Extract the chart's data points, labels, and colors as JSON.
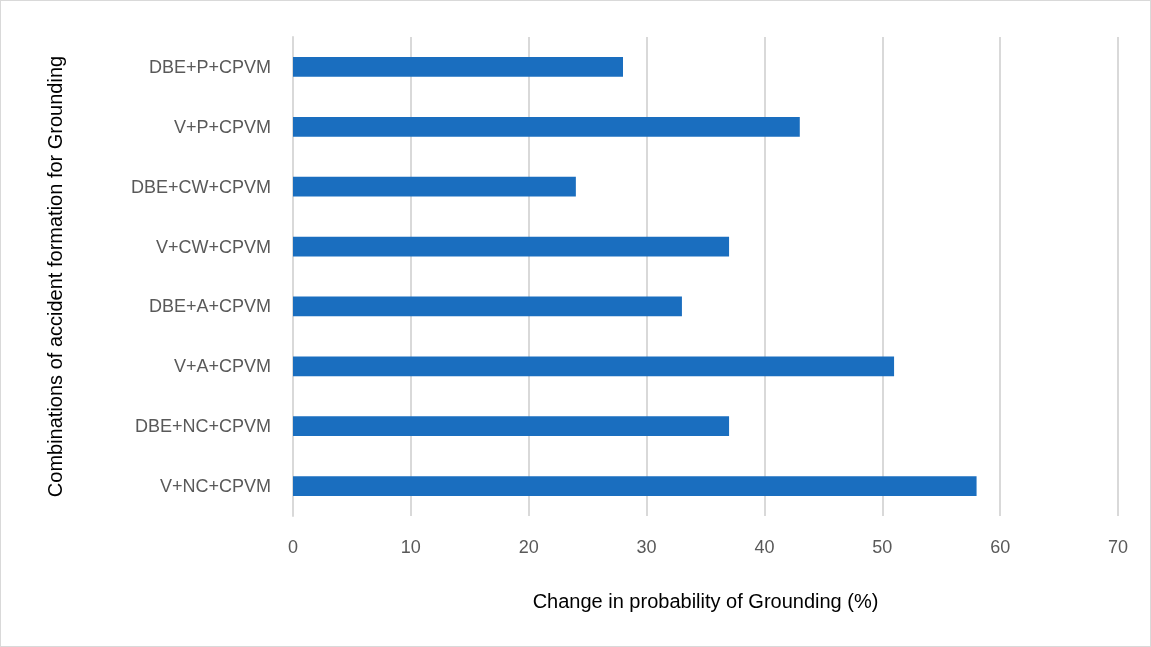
{
  "chart_data": {
    "type": "bar",
    "orientation": "horizontal",
    "xlabel": "Change in probability of Grounding (%)",
    "ylabel": "Combinations of accident formation for Grounding",
    "categories": [
      "DBE+P+CPVM",
      "V+P+CPVM",
      "DBE+CW+CPVM",
      "V+CW+CPVM",
      "DBE+A+CPVM",
      "V+A+CPVM",
      "DBE+NC+CPVM",
      "V+NC+CPVM"
    ],
    "values": [
      28,
      43,
      24,
      37,
      33,
      51,
      37,
      58
    ],
    "color": "#1a6ebf",
    "xlim": [
      0,
      70
    ],
    "xticks": [
      0,
      10,
      20,
      30,
      40,
      50,
      60,
      70
    ],
    "grid": "x"
  }
}
